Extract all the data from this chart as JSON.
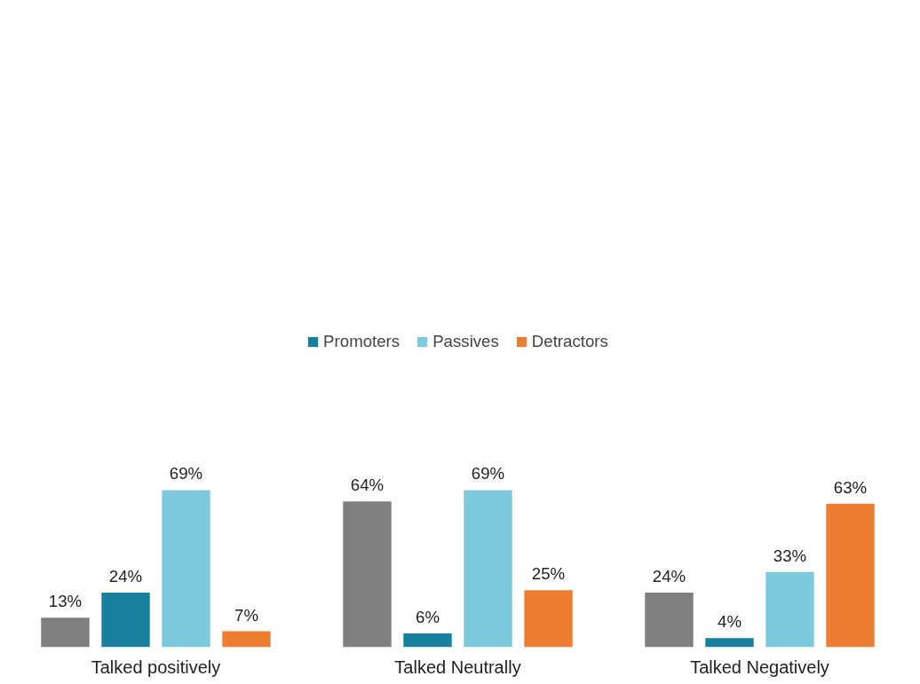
{
  "chart_data": {
    "type": "bar",
    "categories": [
      "Talked positively",
      "Talked Neutrally",
      "Talked Negatively"
    ],
    "legend": "top",
    "grid": false,
    "series": [
      {
        "color": "#7f7f7f",
        "values": [
          13,
          64,
          24
        ],
        "value_labels": [
          "13%",
          "64%",
          "24%"
        ]
      },
      {
        "name": "Promoters",
        "color": "#17809e",
        "values": [
          24,
          6,
          4
        ],
        "value_labels": [
          "24%",
          "6%",
          "4%"
        ]
      },
      {
        "name": "Passives",
        "color": "#7ccadb",
        "values": [
          69,
          69,
          33
        ],
        "value_labels": [
          "69%",
          "69%",
          "33%"
        ]
      },
      {
        "name": "Detractors",
        "color": "#ed7d31",
        "values": [
          7,
          25,
          63
        ],
        "value_labels": [
          "7%",
          "25%",
          "63%"
        ]
      }
    ]
  }
}
